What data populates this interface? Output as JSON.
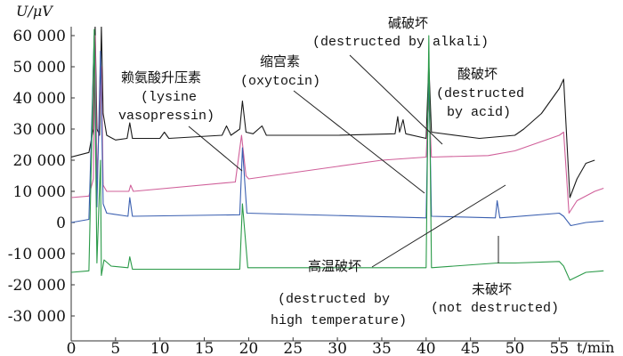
{
  "chart_data": {
    "type": "line",
    "xlabel": "t/min",
    "ylabel": "U/μV",
    "xlim": [
      0,
      60.5
    ],
    "ylim": [
      -38000,
      63000
    ],
    "xticks": [
      0,
      5,
      10,
      15,
      20,
      25,
      30,
      35,
      40,
      45,
      50,
      55
    ],
    "xtick_labels": [
      "0",
      "5",
      "10",
      "15",
      "20",
      "25",
      "30",
      "35",
      "40",
      "45",
      "50",
      "55"
    ],
    "yticks": [
      60000,
      50000,
      40000,
      30000,
      20000,
      10000,
      0,
      -10000,
      -20000,
      -30000
    ],
    "ytick_labels": [
      "60 000",
      "50 000",
      "40 000",
      "30 000",
      "20 000",
      "10 000",
      "0",
      "-10 000",
      "-20 000",
      "-30 000"
    ],
    "grid": false,
    "series": [
      {
        "name": "酸破坏 (destructed by acid)",
        "color": "#1a1a1a",
        "points": [
          [
            0,
            21000
          ],
          [
            2,
            22500
          ],
          [
            2.5,
            30000
          ],
          [
            2.7,
            63000
          ],
          [
            2.9,
            30000
          ],
          [
            3.2,
            28000
          ],
          [
            3.4,
            63000
          ],
          [
            3.6,
            35000
          ],
          [
            4,
            28000
          ],
          [
            5,
            26500
          ],
          [
            6.3,
            27000
          ],
          [
            6.6,
            32000
          ],
          [
            6.9,
            27000
          ],
          [
            10,
            27000
          ],
          [
            10.5,
            29000
          ],
          [
            11,
            27000
          ],
          [
            17,
            28000
          ],
          [
            17.5,
            31000
          ],
          [
            18,
            28000
          ],
          [
            19,
            30000
          ],
          [
            19.3,
            39000
          ],
          [
            19.7,
            29000
          ],
          [
            20.5,
            28500
          ],
          [
            21.5,
            31000
          ],
          [
            22,
            28000
          ],
          [
            30,
            28000
          ],
          [
            36.5,
            28500
          ],
          [
            36.8,
            34000
          ],
          [
            37,
            29000
          ],
          [
            37.4,
            33000
          ],
          [
            37.7,
            28500
          ],
          [
            40,
            27000
          ],
          [
            40.3,
            51000
          ],
          [
            40.6,
            29000
          ],
          [
            46,
            27000
          ],
          [
            50,
            28000
          ],
          [
            51,
            30000
          ],
          [
            53,
            35000
          ],
          [
            55,
            43000
          ],
          [
            55.5,
            46000
          ],
          [
            56.2,
            8000
          ],
          [
            57,
            14000
          ],
          [
            58,
            19000
          ],
          [
            59,
            20000
          ]
        ]
      },
      {
        "name": "碱破坏 (destructed by alkali)",
        "color": "#d0609a",
        "points": [
          [
            0,
            8000
          ],
          [
            2,
            8500
          ],
          [
            2.5,
            14000
          ],
          [
            2.7,
            60000
          ],
          [
            2.9,
            14000
          ],
          [
            3.4,
            50000
          ],
          [
            3.6,
            12000
          ],
          [
            4,
            10000
          ],
          [
            6.5,
            10000
          ],
          [
            6.7,
            12000
          ],
          [
            7,
            10000
          ],
          [
            18.5,
            13000
          ],
          [
            19.2,
            28000
          ],
          [
            19.7,
            15000
          ],
          [
            20,
            14000
          ],
          [
            25,
            16000
          ],
          [
            30,
            18000
          ],
          [
            35,
            20000
          ],
          [
            40,
            21000
          ],
          [
            40.3,
            40000
          ],
          [
            40.6,
            21000
          ],
          [
            47,
            21500
          ],
          [
            50,
            23000
          ],
          [
            55,
            28000
          ],
          [
            55.5,
            29000
          ],
          [
            56.1,
            3000
          ],
          [
            57,
            7000
          ],
          [
            59,
            10000
          ],
          [
            60,
            11000
          ]
        ]
      },
      {
        "name": "未破坏 (not destructed)",
        "color": "#3a5fb0",
        "points": [
          [
            0,
            0
          ],
          [
            2,
            1000
          ],
          [
            2.6,
            60000
          ],
          [
            2.9,
            5000
          ],
          [
            3.3,
            55000
          ],
          [
            3.6,
            6000
          ],
          [
            4,
            3000
          ],
          [
            6.4,
            2000
          ],
          [
            6.6,
            8000
          ],
          [
            6.9,
            2000
          ],
          [
            19,
            2500
          ],
          [
            19.3,
            24000
          ],
          [
            19.8,
            3000
          ],
          [
            40,
            1500
          ],
          [
            40.3,
            48000
          ],
          [
            40.6,
            2000
          ],
          [
            47.8,
            1500
          ],
          [
            48,
            7000
          ],
          [
            48.3,
            1500
          ],
          [
            55,
            3000
          ],
          [
            55.5,
            2000
          ],
          [
            56.3,
            -1000
          ],
          [
            58,
            0
          ],
          [
            60,
            500
          ]
        ]
      },
      {
        "name": "高温破坏 (destructed by high temperature)",
        "color": "#2a9a48",
        "points": [
          [
            0,
            -16000
          ],
          [
            2,
            -15500
          ],
          [
            2.6,
            62000
          ],
          [
            2.9,
            -13000
          ],
          [
            3.3,
            20000
          ],
          [
            3.4,
            -17000
          ],
          [
            3.7,
            -12000
          ],
          [
            4.5,
            -14000
          ],
          [
            6.4,
            -14500
          ],
          [
            6.6,
            -11000
          ],
          [
            6.9,
            -15000
          ],
          [
            19,
            -15000
          ],
          [
            19.3,
            6000
          ],
          [
            19.9,
            -14500
          ],
          [
            30,
            -14500
          ],
          [
            40,
            -14500
          ],
          [
            40.3,
            60000
          ],
          [
            40.6,
            -14500
          ],
          [
            48,
            -13000
          ],
          [
            50,
            -13000
          ],
          [
            55,
            -12500
          ],
          [
            55.5,
            -14000
          ],
          [
            56.2,
            -18500
          ],
          [
            58,
            -16000
          ],
          [
            60,
            -15500
          ]
        ]
      }
    ],
    "annotations": {
      "lysine_cn": "赖氨酸升压素",
      "lysine_en1": "(lysine",
      "lysine_en2": "vasopressin)",
      "oxytocin_cn": "缩宫素",
      "oxytocin_en": "(oxytocin)",
      "alkali_cn": "碱破坏",
      "alkali_en": "(destructed by alkali)",
      "acid_cn": "酸破坏",
      "acid_en1": "(destructed",
      "acid_en2": "by acid)",
      "heat_cn": "高温破坏",
      "heat_en1": "(destructed by",
      "heat_en2": "high temperature)",
      "none_cn": "未破坏",
      "none_en": "(not destructed)"
    }
  }
}
